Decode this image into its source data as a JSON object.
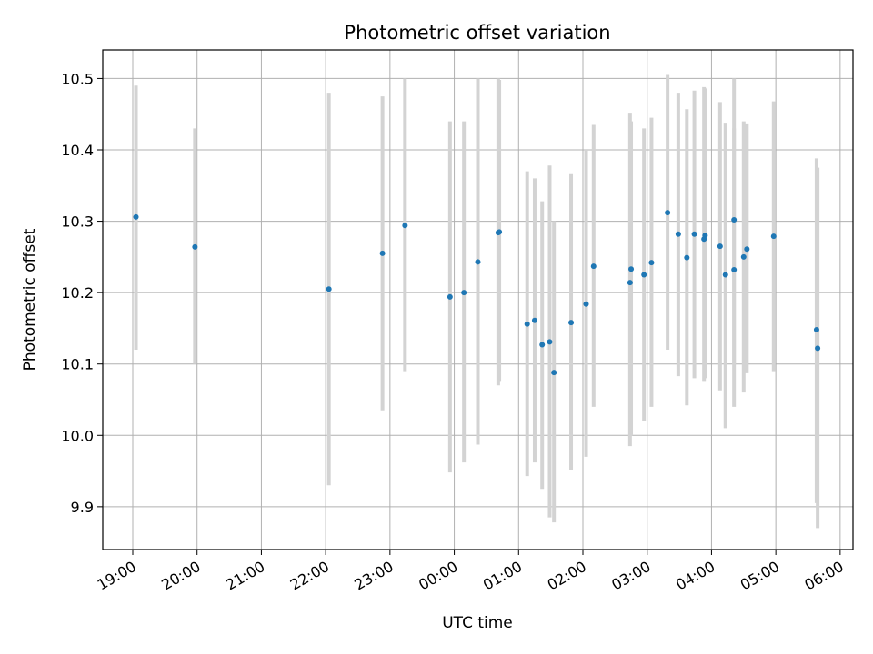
{
  "chart_data": {
    "type": "scatter",
    "title": "Photometric offset variation",
    "xlabel": "UTC time",
    "ylabel": "Photometric offset",
    "xlim": [
      "18:32",
      "06:12"
    ],
    "ylim": [
      9.84,
      10.54
    ],
    "x_ticks": [
      "19:00",
      "20:00",
      "21:00",
      "22:00",
      "23:00",
      "00:00",
      "01:00",
      "02:00",
      "03:00",
      "04:00",
      "05:00",
      "06:00"
    ],
    "y_ticks": [
      "9.9",
      "10.0",
      "10.1",
      "10.2",
      "10.3",
      "10.4",
      "10.5"
    ],
    "grid": true,
    "marker_color": "#1f77b4",
    "errorbar_color": "#d3d3d3",
    "points": [
      {
        "x": "19:03",
        "y": 10.306,
        "low": 10.12,
        "high": 10.49
      },
      {
        "x": "19:58",
        "y": 10.264,
        "low": 10.1,
        "high": 10.43
      },
      {
        "x": "22:03",
        "y": 10.205,
        "low": 9.93,
        "high": 10.48
      },
      {
        "x": "22:53",
        "y": 10.255,
        "low": 10.035,
        "high": 10.475
      },
      {
        "x": "23:14",
        "y": 10.294,
        "low": 10.09,
        "high": 10.5
      },
      {
        "x": "23:56",
        "y": 10.194,
        "low": 9.948,
        "high": 10.44
      },
      {
        "x": "00:09",
        "y": 10.2,
        "low": 9.962,
        "high": 10.44
      },
      {
        "x": "00:22",
        "y": 10.243,
        "low": 9.987,
        "high": 10.5
      },
      {
        "x": "00:41",
        "y": 10.284,
        "low": 10.07,
        "high": 10.5
      },
      {
        "x": "00:42",
        "y": 10.285,
        "low": 10.075,
        "high": 10.498
      },
      {
        "x": "01:08",
        "y": 10.156,
        "low": 9.943,
        "high": 10.37
      },
      {
        "x": "01:15",
        "y": 10.161,
        "low": 9.962,
        "high": 10.36
      },
      {
        "x": "01:22",
        "y": 10.127,
        "low": 9.925,
        "high": 10.328
      },
      {
        "x": "01:29",
        "y": 10.131,
        "low": 9.885,
        "high": 10.378
      },
      {
        "x": "01:33",
        "y": 10.088,
        "low": 9.878,
        "high": 10.3
      },
      {
        "x": "01:49",
        "y": 10.158,
        "low": 9.952,
        "high": 10.366
      },
      {
        "x": "02:03",
        "y": 10.184,
        "low": 9.97,
        "high": 10.4
      },
      {
        "x": "02:10",
        "y": 10.237,
        "low": 10.04,
        "high": 10.435
      },
      {
        "x": "02:44",
        "y": 10.214,
        "low": 9.985,
        "high": 10.452
      },
      {
        "x": "02:45",
        "y": 10.233,
        "low": 10.0,
        "high": 10.44
      },
      {
        "x": "02:57",
        "y": 10.225,
        "low": 10.02,
        "high": 10.43
      },
      {
        "x": "03:04",
        "y": 10.242,
        "low": 10.04,
        "high": 10.445
      },
      {
        "x": "03:19",
        "y": 10.312,
        "low": 10.12,
        "high": 10.505
      },
      {
        "x": "03:29",
        "y": 10.282,
        "low": 10.083,
        "high": 10.48
      },
      {
        "x": "03:37",
        "y": 10.249,
        "low": 10.042,
        "high": 10.457
      },
      {
        "x": "03:44",
        "y": 10.282,
        "low": 10.08,
        "high": 10.483
      },
      {
        "x": "03:53",
        "y": 10.275,
        "low": 10.075,
        "high": 10.488
      },
      {
        "x": "03:54",
        "y": 10.28,
        "low": 10.08,
        "high": 10.486
      },
      {
        "x": "04:08",
        "y": 10.265,
        "low": 10.063,
        "high": 10.467
      },
      {
        "x": "04:13",
        "y": 10.225,
        "low": 10.01,
        "high": 10.438
      },
      {
        "x": "04:21",
        "y": 10.302,
        "low": 10.1,
        "high": 10.5
      },
      {
        "x": "04:21",
        "y": 10.232,
        "low": 10.04,
        "high": 10.43
      },
      {
        "x": "04:30",
        "y": 10.25,
        "low": 10.06,
        "high": 10.44
      },
      {
        "x": "04:33",
        "y": 10.261,
        "low": 10.087,
        "high": 10.437
      },
      {
        "x": "04:58",
        "y": 10.279,
        "low": 10.09,
        "high": 10.468
      },
      {
        "x": "05:38",
        "y": 10.148,
        "low": 9.905,
        "high": 10.388
      },
      {
        "x": "05:39",
        "y": 10.122,
        "low": 9.87,
        "high": 10.375
      }
    ]
  }
}
